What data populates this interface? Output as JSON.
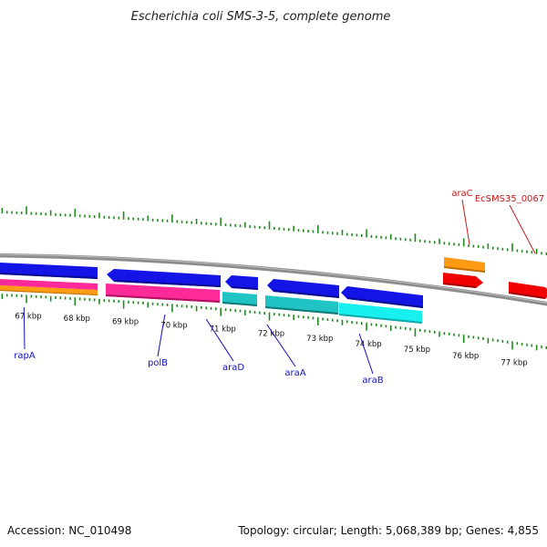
{
  "title": "Escherichia coli SMS-3-5, complete genome",
  "footer": {
    "accession": "Accession: NC_010498",
    "summary": "Topology: circular; Length: 5,068,389 bp; Genes: 4,855"
  },
  "colors": {
    "backbone": "#8c8c8c",
    "tick": "#1e8c1e",
    "blue_label": "#1010c0",
    "red_label": "#c81818",
    "cds": "#1414e6",
    "rna": "#ff2a9a",
    "orange": "#ff9a14",
    "teal": "#20c4c4",
    "cyan": "#18f0f0",
    "red": "#f00000"
  },
  "scale_ticks": [
    {
      "kbp": 67,
      "label": "67 kbp"
    },
    {
      "kbp": 68,
      "label": "68 kbp"
    },
    {
      "kbp": 69,
      "label": "69 kbp"
    },
    {
      "kbp": 70,
      "label": "70 kbp"
    },
    {
      "kbp": 71,
      "label": "71 kbp"
    },
    {
      "kbp": 72,
      "label": "72 kbp"
    },
    {
      "kbp": 73,
      "label": "73 kbp"
    },
    {
      "kbp": 74,
      "label": "74 kbp"
    },
    {
      "kbp": 75,
      "label": "75 kbp"
    },
    {
      "kbp": 76,
      "label": "76 kbp"
    },
    {
      "kbp": 77,
      "label": "77 kbp"
    }
  ],
  "gene_labels_below": [
    {
      "name": "rapA",
      "kbp": 66.95
    },
    {
      "name": "polB",
      "kbp": 69.85
    },
    {
      "name": "araD",
      "kbp": 70.7
    },
    {
      "name": "araA",
      "kbp": 71.95
    },
    {
      "name": "araB",
      "kbp": 73.85
    }
  ],
  "gene_labels_above": [
    {
      "name": "araC",
      "kbp": 75.85
    },
    {
      "name": "EcSMS35_0067",
      "kbp": 77.15
    }
  ]
}
